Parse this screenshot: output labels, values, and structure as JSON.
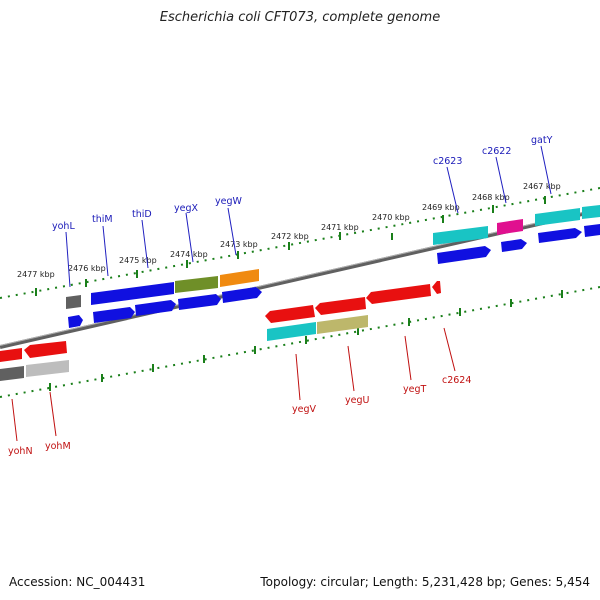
{
  "title": "Escherichia coli CFT073, complete genome",
  "accession_text": "Accession: NC_004431",
  "summary_text": "Topology: circular; Length: 5,231,428 bp; Genes: 5,454",
  "colors": {
    "backbone": "#808080",
    "tick": "#1a7f1a",
    "fwd_label": "#1a1ab8",
    "rev_label": "#c01010",
    "cds_blue": "#1010e0",
    "cds_red": "#e81010",
    "cds_gray_dark": "#606060",
    "cds_gray_light": "#bdbdbd",
    "cds_teal": "#19c4c4",
    "cds_olive": "#6f8f28",
    "cds_orange": "#f08a10",
    "cds_magenta": "#e0108f",
    "cds_khaki": "#bdb76b"
  },
  "kbp_labels": [
    "2467 kbp",
    "2468 kbp",
    "2469 kbp",
    "2470 kbp",
    "2471 kbp",
    "2472 kbp",
    "2473 kbp",
    "2474 kbp",
    "2475 kbp",
    "2476 kbp",
    "2477 kbp"
  ],
  "forward_genes": [
    "yohL",
    "thiM",
    "thiD",
    "yegX",
    "yegW",
    "c2623",
    "c2622",
    "gatY"
  ],
  "reverse_genes": [
    "yohN",
    "yohM",
    "yegV",
    "yegU",
    "yegT",
    "c2624"
  ]
}
